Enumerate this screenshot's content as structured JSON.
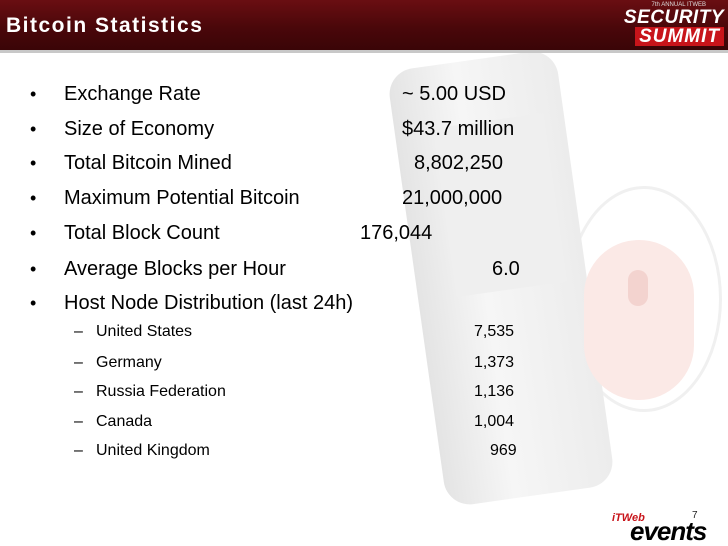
{
  "header": {
    "title": "Bitcoin Statistics"
  },
  "logo": {
    "tag": "7th ANNUAL ITWEB",
    "line1": "SECURITY",
    "line2": "SUMMIT"
  },
  "bullets": [
    {
      "label": "Exchange Rate",
      "value": "~ 5.00 USD"
    },
    {
      "label": "Size of Economy",
      "value": "$43.7 million"
    },
    {
      "label": "Total Bitcoin Mined",
      "value": "8,802,250"
    },
    {
      "label": "Maximum Potential Bitcoin",
      "value": "21,000,000"
    },
    {
      "label": "Total Block Count",
      "value": "176,044"
    },
    {
      "label": "Average Blocks per Hour",
      "value": "6.0"
    },
    {
      "label": "Host Node Distribution (last 24h)",
      "value": ""
    }
  ],
  "nodes": [
    {
      "country": "United States",
      "count": "7,535"
    },
    {
      "country": "Germany",
      "count": "1,373"
    },
    {
      "country": "Russia Federation",
      "count": "1,136"
    },
    {
      "country": "Canada",
      "count": "1,004"
    },
    {
      "country": "United Kingdom",
      "count": "969"
    }
  ],
  "footer": {
    "page": "7",
    "brand_small": "iTWeb",
    "brand_big": "events"
  },
  "colors": {
    "header": "#5a0a0e",
    "accent": "#c8141a"
  }
}
